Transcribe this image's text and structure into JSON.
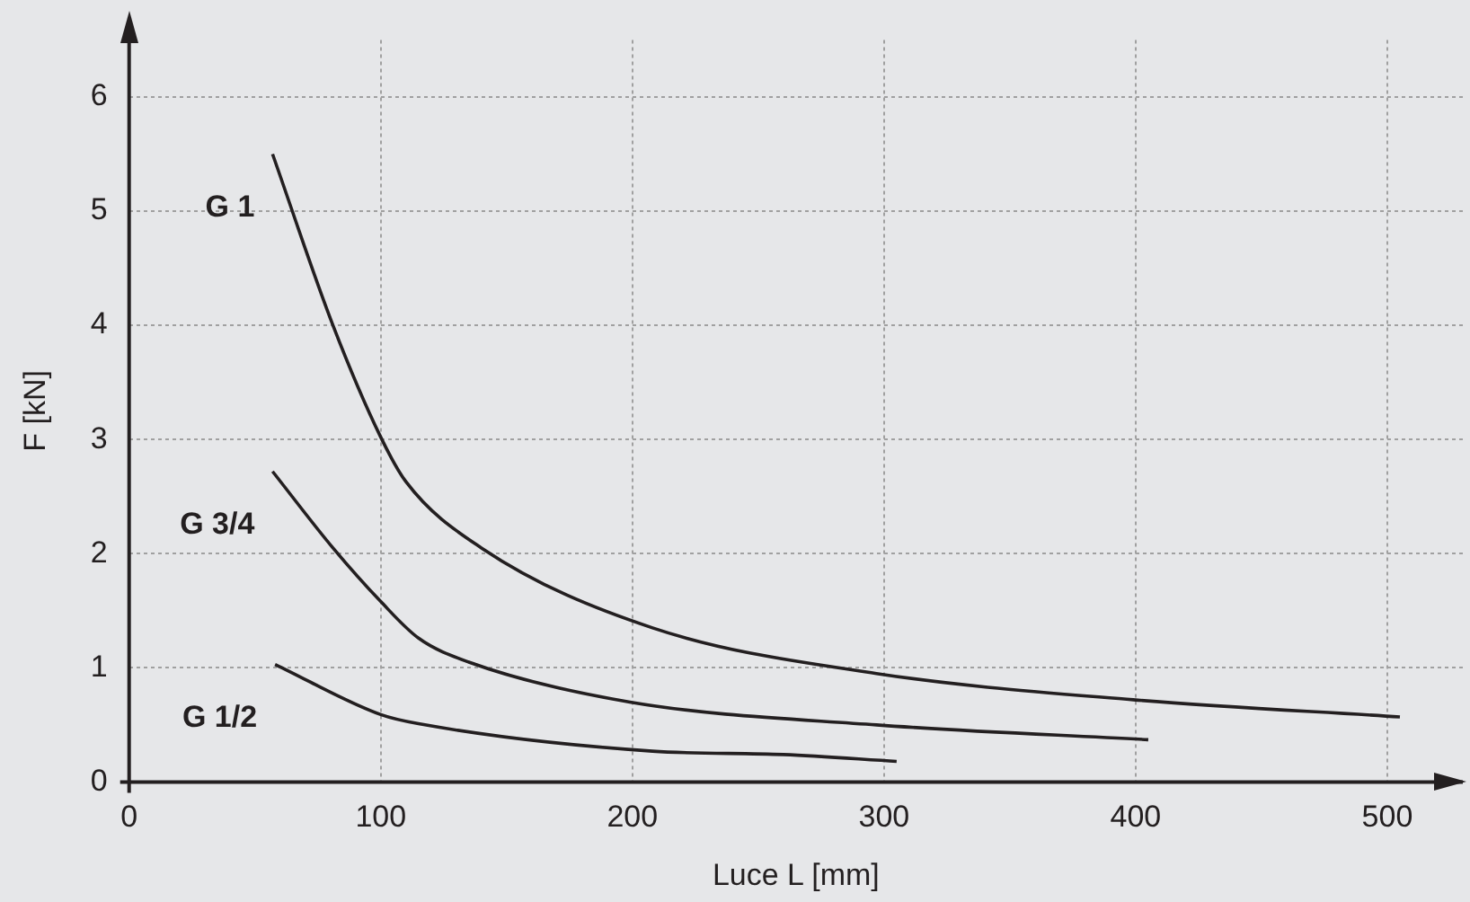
{
  "chart_data": {
    "type": "line",
    "xlabel": "Luce L [mm]",
    "ylabel": "F [kN]",
    "xlim": [
      0,
      530
    ],
    "ylim": [
      0,
      6.5
    ],
    "xticks": [
      0,
      100,
      200,
      300,
      400,
      500
    ],
    "yticks": [
      0,
      1,
      2,
      3,
      4,
      5,
      6
    ],
    "grid": true,
    "legend": false,
    "marker": "none",
    "line_style": "solid",
    "series": [
      {
        "name": "G 1",
        "color": "#231f20",
        "x": [
          57,
          81,
          100,
          110,
          140,
          208,
          297,
          399,
          505
        ],
        "values": [
          5.5,
          4.0,
          3.02,
          2.63,
          2.05,
          1.35,
          0.95,
          0.72,
          0.57
        ]
      },
      {
        "name": "G 3/4",
        "color": "#231f20",
        "x": [
          57,
          81,
          100,
          115,
          135,
          199,
          297,
          405
        ],
        "values": [
          2.72,
          2.05,
          1.58,
          1.26,
          1.05,
          0.7,
          0.5,
          0.37
        ]
      },
      {
        "name": "G 1/2",
        "color": "#231f20",
        "x": [
          58,
          100,
          115,
          208,
          260,
          305
        ],
        "values": [
          1.03,
          0.59,
          0.51,
          0.27,
          0.24,
          0.18
        ]
      }
    ]
  }
}
